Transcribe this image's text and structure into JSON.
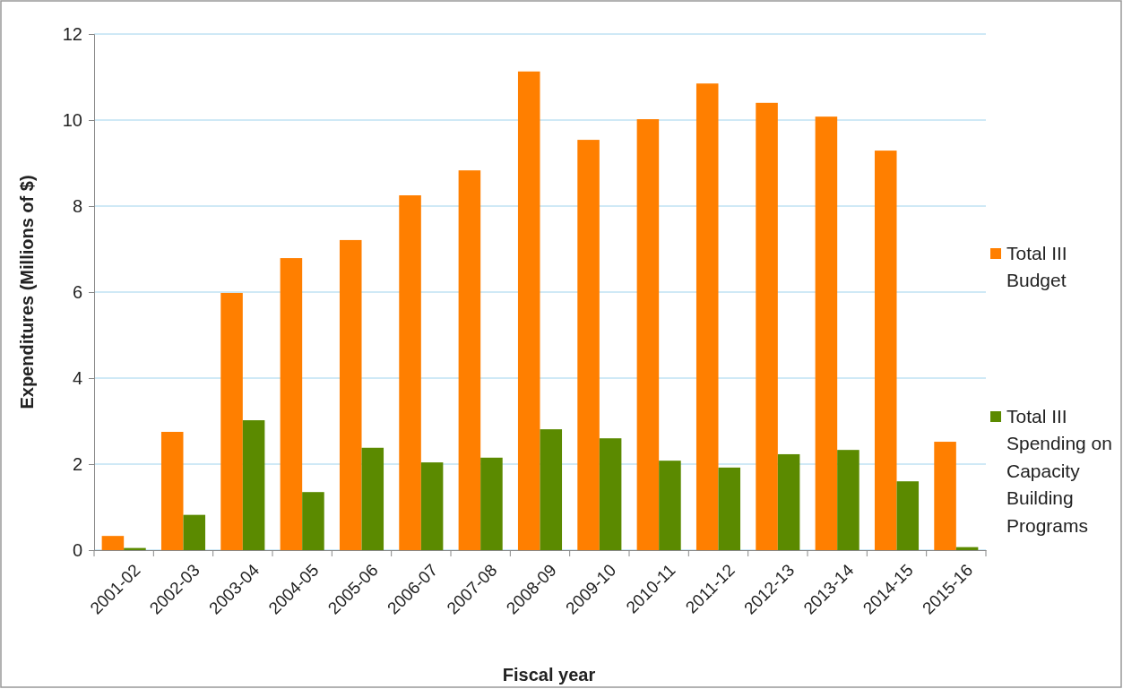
{
  "chart_data": {
    "type": "bar",
    "xlabel": "Fiscal year",
    "ylabel": "Expenditures (Millions of $)",
    "categories": [
      "2001-02",
      "2002-03",
      "2003-04",
      "2004-05",
      "2005-06",
      "2006-07",
      "2007-08",
      "2008-09",
      "2009-10",
      "2010-11",
      "2011-12",
      "2012-13",
      "2013-14",
      "2014-15",
      "2015-16"
    ],
    "series": [
      {
        "name": "Total III Budget",
        "color": "#ff7f00",
        "values": [
          0.33,
          2.75,
          5.98,
          6.79,
          7.21,
          8.25,
          8.83,
          11.13,
          9.54,
          10.02,
          10.85,
          10.4,
          10.08,
          9.29,
          2.52
        ]
      },
      {
        "name": "Total III Spending on Capacity Building Programs",
        "color": "#5b8a00",
        "values": [
          0.05,
          0.82,
          3.02,
          1.35,
          2.38,
          2.04,
          2.15,
          2.81,
          2.6,
          2.08,
          1.92,
          2.23,
          2.33,
          1.6,
          0.07
        ]
      }
    ],
    "ylim": [
      0,
      12
    ],
    "yticks": [
      0,
      2,
      4,
      6,
      8,
      10,
      12
    ],
    "grid": "y",
    "legend": "right"
  }
}
